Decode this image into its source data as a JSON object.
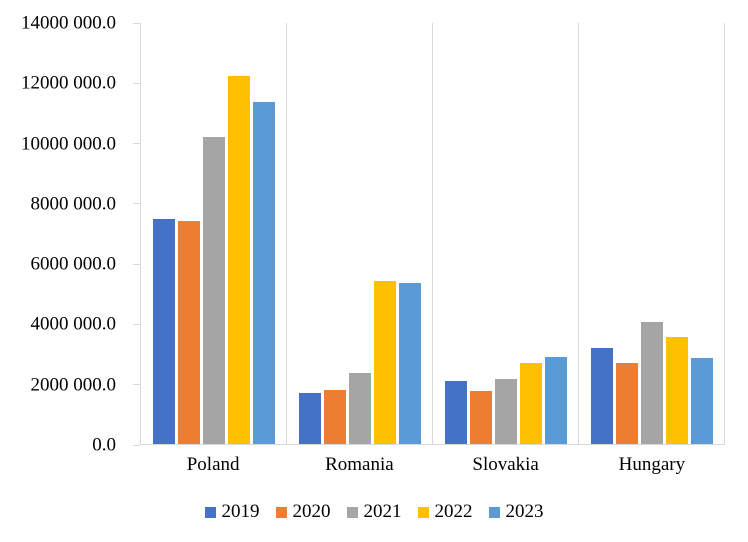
{
  "chart_data": {
    "type": "bar",
    "title": "",
    "xlabel": "",
    "ylabel": "",
    "categories": [
      "Poland",
      "Romania",
      "Slovakia",
      "Hungary"
    ],
    "series": [
      {
        "name": "2019",
        "color": "#4472C4",
        "values": [
          7450000,
          1700000,
          2100000,
          3200000
        ]
      },
      {
        "name": "2020",
        "color": "#ED7D31",
        "values": [
          7400000,
          1800000,
          1750000,
          2700000
        ]
      },
      {
        "name": "2021",
        "color": "#A5A5A5",
        "values": [
          10200000,
          2350000,
          2150000,
          4050000
        ]
      },
      {
        "name": "2022",
        "color": "#FFC000",
        "values": [
          12200000,
          5400000,
          2700000,
          3550000
        ]
      },
      {
        "name": "2023",
        "color": "#5B9BD5",
        "values": [
          11350000,
          5350000,
          2900000,
          2850000
        ]
      }
    ],
    "ylim": [
      0,
      14000000
    ],
    "yticks": [
      "14000 000.0",
      "12000 000.0",
      "10000 000.0",
      "8000 000.0",
      "6000 000.0",
      "4000 000.0",
      "2000 000.0",
      "0.0"
    ],
    "grid": "vertical category separators only, no horizontal gridlines",
    "legend_position": "bottom-center",
    "axis_color": "#D9D9D9",
    "background_color": "#FFFFFF"
  }
}
